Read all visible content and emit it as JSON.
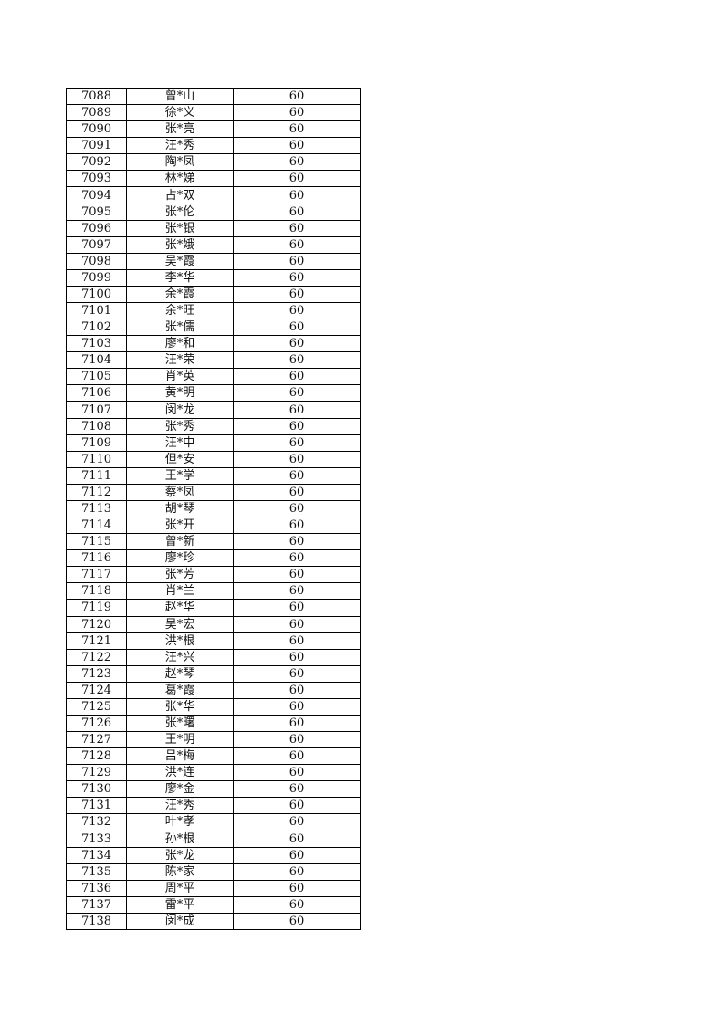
{
  "table": {
    "rows": [
      [
        "7088",
        "曾*山",
        "60"
      ],
      [
        "7089",
        "徐*义",
        "60"
      ],
      [
        "7090",
        "张*亮",
        "60"
      ],
      [
        "7091",
        "汪*秀",
        "60"
      ],
      [
        "7092",
        "陶*凤",
        "60"
      ],
      [
        "7093",
        "林*娣",
        "60"
      ],
      [
        "7094",
        "占*双",
        "60"
      ],
      [
        "7095",
        "张*伦",
        "60"
      ],
      [
        "7096",
        "张*银",
        "60"
      ],
      [
        "7097",
        "张*娥",
        "60"
      ],
      [
        "7098",
        "吴*霞",
        "60"
      ],
      [
        "7099",
        "李*华",
        "60"
      ],
      [
        "7100",
        "余*霞",
        "60"
      ],
      [
        "7101",
        "余*旺",
        "60"
      ],
      [
        "7102",
        "张*儒",
        "60"
      ],
      [
        "7103",
        "廖*和",
        "60"
      ],
      [
        "7104",
        "汪*荣",
        "60"
      ],
      [
        "7105",
        "肖*英",
        "60"
      ],
      [
        "7106",
        "黄*明",
        "60"
      ],
      [
        "7107",
        "闵*龙",
        "60"
      ],
      [
        "7108",
        "张*秀",
        "60"
      ],
      [
        "7109",
        "汪*中",
        "60"
      ],
      [
        "7110",
        "但*安",
        "60"
      ],
      [
        "7111",
        "王*学",
        "60"
      ],
      [
        "7112",
        "蔡*凤",
        "60"
      ],
      [
        "7113",
        "胡*琴",
        "60"
      ],
      [
        "7114",
        "张*开",
        "60"
      ],
      [
        "7115",
        "曾*新",
        "60"
      ],
      [
        "7116",
        "廖*珍",
        "60"
      ],
      [
        "7117",
        "张*芳",
        "60"
      ],
      [
        "7118",
        "肖*兰",
        "60"
      ],
      [
        "7119",
        "赵*华",
        "60"
      ],
      [
        "7120",
        "吴*宏",
        "60"
      ],
      [
        "7121",
        "洪*根",
        "60"
      ],
      [
        "7122",
        "汪*兴",
        "60"
      ],
      [
        "7123",
        "赵*琴",
        "60"
      ],
      [
        "7124",
        "葛*霞",
        "60"
      ],
      [
        "7125",
        "张*华",
        "60"
      ],
      [
        "7126",
        "张*曙",
        "60"
      ],
      [
        "7127",
        "王*明",
        "60"
      ],
      [
        "7128",
        "吕*梅",
        "60"
      ],
      [
        "7129",
        "洪*连",
        "60"
      ],
      [
        "7130",
        "廖*金",
        "60"
      ],
      [
        "7131",
        "汪*秀",
        "60"
      ],
      [
        "7132",
        "叶*孝",
        "60"
      ],
      [
        "7133",
        "孙*根",
        "60"
      ],
      [
        "7134",
        "张*龙",
        "60"
      ],
      [
        "7135",
        "陈*家",
        "60"
      ],
      [
        "7136",
        "周*平",
        "60"
      ],
      [
        "7137",
        "雷*平",
        "60"
      ],
      [
        "7138",
        "闵*成",
        "60"
      ]
    ]
  }
}
